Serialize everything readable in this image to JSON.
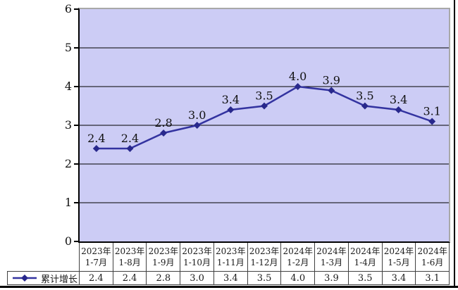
{
  "legend": {
    "label": "累计增长"
  },
  "colors": {
    "plot_background": "#CCCCF5",
    "series_line": "#3333A0",
    "marker": "#28288C",
    "gridline": "#000000",
    "plot_border_gray": "#A8A8A8",
    "axis_line": "#000000",
    "label_text": "#111111",
    "table_border": "#404040",
    "frame": "#000000",
    "page_background": "#FFFFFF"
  },
  "chart_data": {
    "type": "line",
    "title": "",
    "xlabel": "",
    "ylabel": "",
    "categories": [
      "2023年\n1-7月",
      "2023年\n1-8月",
      "2023年\n1-9月",
      "2023年\n1-10月",
      "2023年\n1-11月",
      "2023年\n1-12月",
      "2024年\n1-2月",
      "2024年\n1-3月",
      "2024年\n1-4月",
      "2024年\n1-5月",
      "2024年\n1-6月"
    ],
    "series": [
      {
        "name": "累计增长",
        "values": [
          2.4,
          2.4,
          2.8,
          3.0,
          3.4,
          3.5,
          4.0,
          3.9,
          3.5,
          3.4,
          3.1
        ]
      }
    ],
    "value_labels_shown": true,
    "value_decimals": 1,
    "ylim": [
      0,
      6
    ],
    "ytick_step": 1,
    "yticks": [
      "0",
      "1",
      "2",
      "3",
      "4",
      "5",
      "6"
    ],
    "grid": "horizontal",
    "legend_position": "bottom-table",
    "data_table_shown": true
  }
}
